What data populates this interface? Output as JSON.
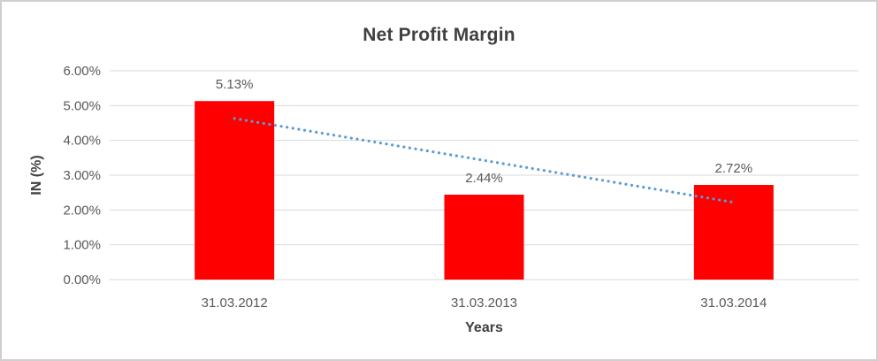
{
  "chart_data": {
    "type": "bar",
    "title": "Net Profit Margin",
    "categories": [
      "31.03.2012",
      "31.03.2013",
      "31.03.2014"
    ],
    "series": [
      {
        "name": "Net Profit Margin",
        "values": [
          5.13,
          2.44,
          2.72
        ]
      }
    ],
    "data_labels": [
      "5.13%",
      "2.44%",
      "2.72%"
    ],
    "xlabel": "Years",
    "ylabel": "IN (%)",
    "ylim": [
      0,
      6
    ],
    "ytick_step": 1,
    "ytick_labels": [
      "0.00%",
      "1.00%",
      "2.00%",
      "3.00%",
      "4.00%",
      "5.00%",
      "6.00%"
    ],
    "grid": true,
    "legend": "none",
    "trendline": {
      "type": "linear",
      "style": "dotted",
      "start_value": 4.63,
      "end_value": 2.22
    },
    "colors": {
      "bar": "#ff0000",
      "trendline": "#5b9bd5",
      "gridline": "#d9d9d9",
      "title_text": "#404040",
      "axis_text": "#595959",
      "frame_border": "#d0cece",
      "background": "#ffffff"
    }
  }
}
